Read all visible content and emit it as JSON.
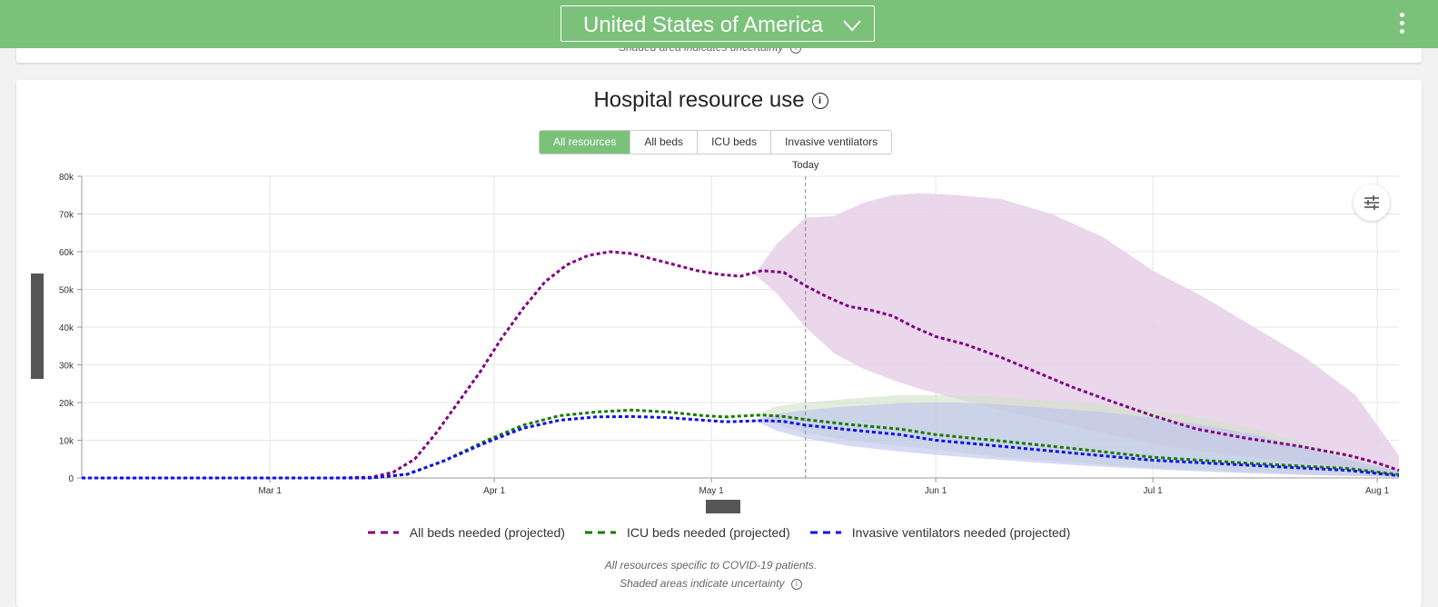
{
  "header": {
    "country": "United States of America",
    "country_menu_icon": "chevron-down-icon",
    "more_icon": "more-vertical-icon"
  },
  "previous_card": {
    "note": "Shaded area indicates uncertainty"
  },
  "card": {
    "title": "Hospital resource use",
    "title_icon": "info-icon",
    "tabs": [
      "All resources",
      "All beds",
      "ICU beds",
      "Invasive ventilators"
    ],
    "active_tab": "All resources",
    "settings_icon": "sliders-icon",
    "notes": [
      "All resources specific to COVID-19 patients.",
      "Shaded areas indicate uncertainty"
    ]
  },
  "colors": {
    "header_bg": "#7bc17a",
    "all_beds": "#800080",
    "icu_beds": "#1a7a00",
    "ventilators": "#1010ee",
    "all_beds_band": "#e6d0e8",
    "icu_band": "#cfe3c6",
    "vent_band": "#bcc2f0"
  },
  "chart_data": {
    "type": "line",
    "x_axis": "date",
    "x_ticks": [
      "Mar 1",
      "Apr 1",
      "May 1",
      "Jun 1",
      "Jul 1",
      "Aug 1"
    ],
    "x_tick_dates": [
      "2020-03-01",
      "2020-04-01",
      "2020-05-01",
      "2020-06-01",
      "2020-07-01",
      "2020-08-01"
    ],
    "xlim": [
      "2020-02-04",
      "2020-08-04"
    ],
    "y_ticks": [
      "0",
      "10k",
      "20k",
      "30k",
      "40k",
      "50k",
      "60k",
      "70k",
      "80k"
    ],
    "ylim": [
      0,
      80000
    ],
    "grid": true,
    "today_label": "Today",
    "today_date": "2020-05-14",
    "legend_position": "bottom",
    "series": [
      {
        "name": "All beds needed (projected)",
        "color": "#800080",
        "points": [
          [
            "2020-02-04",
            0
          ],
          [
            "2020-03-10",
            0
          ],
          [
            "2020-03-15",
            200
          ],
          [
            "2020-03-18",
            1500
          ],
          [
            "2020-03-21",
            5000
          ],
          [
            "2020-03-24",
            12000
          ],
          [
            "2020-03-27",
            20000
          ],
          [
            "2020-03-30",
            28000
          ],
          [
            "2020-04-02",
            37000
          ],
          [
            "2020-04-05",
            45000
          ],
          [
            "2020-04-08",
            52000
          ],
          [
            "2020-04-11",
            56500
          ],
          [
            "2020-04-14",
            59000
          ],
          [
            "2020-04-17",
            60000
          ],
          [
            "2020-04-20",
            59500
          ],
          [
            "2020-04-23",
            58000
          ],
          [
            "2020-04-26",
            56500
          ],
          [
            "2020-04-29",
            55000
          ],
          [
            "2020-05-02",
            54000
          ],
          [
            "2020-05-05",
            53500
          ],
          [
            "2020-05-08",
            55000
          ],
          [
            "2020-05-11",
            54500
          ],
          [
            "2020-05-14",
            51000
          ],
          [
            "2020-05-17",
            48000
          ],
          [
            "2020-05-20",
            45500
          ],
          [
            "2020-05-23",
            44500
          ],
          [
            "2020-05-26",
            43000
          ],
          [
            "2020-05-29",
            40000
          ],
          [
            "2020-06-01",
            37500
          ],
          [
            "2020-06-05",
            35500
          ],
          [
            "2020-06-10",
            32000
          ],
          [
            "2020-06-15",
            28000
          ],
          [
            "2020-06-20",
            24000
          ],
          [
            "2020-06-25",
            20500
          ],
          [
            "2020-07-01",
            16500
          ],
          [
            "2020-07-07",
            13000
          ],
          [
            "2020-07-14",
            10500
          ],
          [
            "2020-07-21",
            8500
          ],
          [
            "2020-07-28",
            6000
          ],
          [
            "2020-08-01",
            4000
          ],
          [
            "2020-08-04",
            2000
          ]
        ]
      },
      {
        "name": "ICU beds needed (projected)",
        "color": "#1a7a00",
        "points": [
          [
            "2020-02-04",
            0
          ],
          [
            "2020-03-15",
            0
          ],
          [
            "2020-03-20",
            1000
          ],
          [
            "2020-03-25",
            4500
          ],
          [
            "2020-03-31",
            10000
          ],
          [
            "2020-04-05",
            14000
          ],
          [
            "2020-04-10",
            16500
          ],
          [
            "2020-04-15",
            17500
          ],
          [
            "2020-04-20",
            18000
          ],
          [
            "2020-04-25",
            17500
          ],
          [
            "2020-04-30",
            16500
          ],
          [
            "2020-05-03",
            16200
          ],
          [
            "2020-05-08",
            16700
          ],
          [
            "2020-05-11",
            16300
          ],
          [
            "2020-05-14",
            15500
          ],
          [
            "2020-05-20",
            14200
          ],
          [
            "2020-05-27",
            13000
          ],
          [
            "2020-06-01",
            11500
          ],
          [
            "2020-06-10",
            9800
          ],
          [
            "2020-06-20",
            7800
          ],
          [
            "2020-07-01",
            5500
          ],
          [
            "2020-07-15",
            3800
          ],
          [
            "2020-07-28",
            2500
          ],
          [
            "2020-08-04",
            900
          ]
        ]
      },
      {
        "name": "Invasive ventilators needed (projected)",
        "color": "#1010ee",
        "points": [
          [
            "2020-02-04",
            0
          ],
          [
            "2020-03-15",
            0
          ],
          [
            "2020-03-20",
            1000
          ],
          [
            "2020-03-25",
            4500
          ],
          [
            "2020-03-31",
            9500
          ],
          [
            "2020-04-05",
            13200
          ],
          [
            "2020-04-10",
            15300
          ],
          [
            "2020-04-15",
            16200
          ],
          [
            "2020-04-20",
            16300
          ],
          [
            "2020-04-25",
            16000
          ],
          [
            "2020-04-30",
            15300
          ],
          [
            "2020-05-03",
            14900
          ],
          [
            "2020-05-08",
            15200
          ],
          [
            "2020-05-11",
            15000
          ],
          [
            "2020-05-14",
            14000
          ],
          [
            "2020-05-20",
            12800
          ],
          [
            "2020-05-27",
            11500
          ],
          [
            "2020-06-01",
            10000
          ],
          [
            "2020-06-10",
            8400
          ],
          [
            "2020-06-20",
            6600
          ],
          [
            "2020-07-01",
            4700
          ],
          [
            "2020-07-15",
            3300
          ],
          [
            "2020-07-28",
            2000
          ],
          [
            "2020-08-04",
            600
          ]
        ]
      }
    ],
    "bands": [
      {
        "series": "All beds needed (projected)",
        "color": "#e6d0e8",
        "upper": [
          [
            "2020-05-07",
            54000
          ],
          [
            "2020-05-10",
            62000
          ],
          [
            "2020-05-14",
            69000
          ],
          [
            "2020-05-18",
            69500
          ],
          [
            "2020-05-22",
            73000
          ],
          [
            "2020-05-26",
            75000
          ],
          [
            "2020-05-30",
            75500
          ],
          [
            "2020-06-04",
            75000
          ],
          [
            "2020-06-10",
            74000
          ],
          [
            "2020-06-17",
            70000
          ],
          [
            "2020-06-24",
            64000
          ],
          [
            "2020-07-01",
            55000
          ],
          [
            "2020-07-08",
            48000
          ],
          [
            "2020-07-15",
            40000
          ],
          [
            "2020-07-22",
            32000
          ],
          [
            "2020-07-29",
            22000
          ],
          [
            "2020-08-04",
            6000
          ]
        ],
        "lower": [
          [
            "2020-05-07",
            54000
          ],
          [
            "2020-05-10",
            49000
          ],
          [
            "2020-05-14",
            40000
          ],
          [
            "2020-05-18",
            33000
          ],
          [
            "2020-05-22",
            29000
          ],
          [
            "2020-05-26",
            26000
          ],
          [
            "2020-05-30",
            23500
          ],
          [
            "2020-06-04",
            21000
          ],
          [
            "2020-06-10",
            18000
          ],
          [
            "2020-06-17",
            15000
          ],
          [
            "2020-06-24",
            12000
          ],
          [
            "2020-07-01",
            9000
          ],
          [
            "2020-07-08",
            7000
          ],
          [
            "2020-07-15",
            5500
          ],
          [
            "2020-07-22",
            4000
          ],
          [
            "2020-07-29",
            2500
          ],
          [
            "2020-08-04",
            800
          ]
        ]
      },
      {
        "series": "ICU beds needed (projected)",
        "color": "#cfe3c6",
        "upper": [
          [
            "2020-05-07",
            16700
          ],
          [
            "2020-05-10",
            19000
          ],
          [
            "2020-05-14",
            20000
          ],
          [
            "2020-05-20",
            21000
          ],
          [
            "2020-05-27",
            22000
          ],
          [
            "2020-06-03",
            22000
          ],
          [
            "2020-06-10",
            21500
          ],
          [
            "2020-06-17",
            20500
          ],
          [
            "2020-06-24",
            19500
          ],
          [
            "2020-07-01",
            18000
          ],
          [
            "2020-07-08",
            16000
          ],
          [
            "2020-07-15",
            13000
          ],
          [
            "2020-07-22",
            9000
          ],
          [
            "2020-07-29",
            5000
          ],
          [
            "2020-08-04",
            2000
          ]
        ],
        "lower": [
          [
            "2020-05-07",
            16700
          ],
          [
            "2020-05-10",
            14000
          ],
          [
            "2020-05-14",
            12000
          ],
          [
            "2020-05-20",
            10000
          ],
          [
            "2020-05-27",
            8500
          ],
          [
            "2020-06-03",
            7000
          ],
          [
            "2020-06-10",
            5500
          ],
          [
            "2020-06-17",
            4500
          ],
          [
            "2020-06-24",
            3500
          ],
          [
            "2020-07-01",
            2700
          ],
          [
            "2020-07-08",
            2000
          ],
          [
            "2020-07-15",
            1500
          ],
          [
            "2020-07-22",
            1000
          ],
          [
            "2020-07-29",
            600
          ],
          [
            "2020-08-04",
            200
          ]
        ]
      },
      {
        "series": "Invasive ventilators needed (projected)",
        "color": "#bcc2f0",
        "upper": [
          [
            "2020-05-07",
            15200
          ],
          [
            "2020-05-10",
            17000
          ],
          [
            "2020-05-14",
            18000
          ],
          [
            "2020-05-20",
            19000
          ],
          [
            "2020-05-27",
            19800
          ],
          [
            "2020-06-03",
            20000
          ],
          [
            "2020-06-10",
            19500
          ],
          [
            "2020-06-17",
            18500
          ],
          [
            "2020-06-24",
            17500
          ],
          [
            "2020-07-01",
            16000
          ],
          [
            "2020-07-08",
            14000
          ],
          [
            "2020-07-15",
            11500
          ],
          [
            "2020-07-22",
            8000
          ],
          [
            "2020-07-29",
            4500
          ],
          [
            "2020-08-04",
            1800
          ]
        ],
        "lower": [
          [
            "2020-05-07",
            15200
          ],
          [
            "2020-05-10",
            12500
          ],
          [
            "2020-05-14",
            10500
          ],
          [
            "2020-05-20",
            8500
          ],
          [
            "2020-05-27",
            7000
          ],
          [
            "2020-06-03",
            5800
          ],
          [
            "2020-06-10",
            4800
          ],
          [
            "2020-06-17",
            3800
          ],
          [
            "2020-06-24",
            3000
          ],
          [
            "2020-07-01",
            2300
          ],
          [
            "2020-07-08",
            1700
          ],
          [
            "2020-07-15",
            1200
          ],
          [
            "2020-07-22",
            800
          ],
          [
            "2020-07-29",
            500
          ],
          [
            "2020-08-04",
            200
          ]
        ]
      }
    ]
  }
}
